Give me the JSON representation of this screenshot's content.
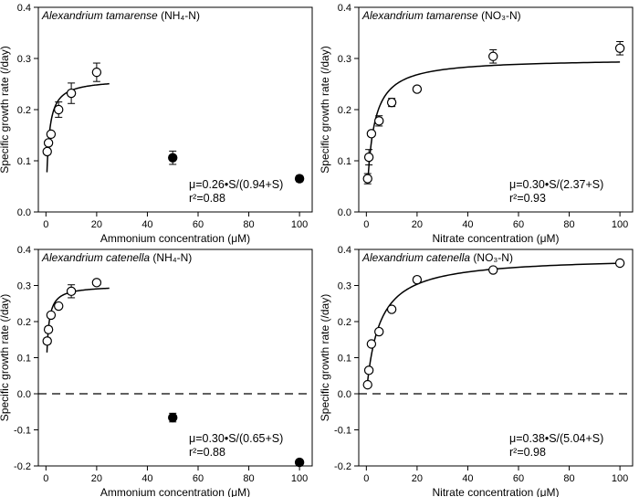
{
  "chart_data": [
    {
      "type": "scatter",
      "title_species": "Alexandrium tamarense",
      "title_nutrient": "(NH₄-N)",
      "xlabel": "Ammonium concentration (μM)",
      "ylabel": "Specific growth rate (/day)",
      "xlim": [
        -3,
        105
      ],
      "ylim": [
        0,
        0.4
      ],
      "xticks": [
        0,
        20,
        40,
        60,
        80,
        100
      ],
      "yticks": [
        0.0,
        0.1,
        0.2,
        0.3,
        0.4
      ],
      "xtick_labels": [
        "0",
        "20",
        "40",
        "60",
        "80",
        "100"
      ],
      "ytick_labels": [
        "0.0",
        "0.1",
        "0.2",
        "0.3",
        "0.4"
      ],
      "equation": "μ=0.26•S/(0.94+S)",
      "r_squared": "r²=0.88",
      "fit": {
        "model": "monod",
        "mu_max": 0.26,
        "ks": 0.94,
        "x_start": 0.4,
        "x_end": 25
      },
      "zero_line": false,
      "series": [
        {
          "marker": "open-circle",
          "x": [
            0.5,
            1,
            2,
            5,
            10,
            20
          ],
          "y": [
            0.118,
            0.135,
            0.152,
            0.2,
            0.232,
            0.273
          ],
          "err": [
            0.005,
            0.005,
            0.005,
            0.015,
            0.02,
            0.018
          ]
        },
        {
          "marker": "filled-circle",
          "x": [
            50,
            100
          ],
          "y": [
            0.106,
            0.065
          ],
          "err": [
            0.013,
            0.006
          ]
        }
      ]
    },
    {
      "type": "scatter",
      "title_species": "Alexandrium tamarense",
      "title_nutrient": "(NO₃-N)",
      "xlabel": "Nitrate concentration (μM)",
      "ylabel": "Specific growth rate (/day)",
      "xlim": [
        -3,
        105
      ],
      "ylim": [
        0,
        0.4
      ],
      "xticks": [
        0,
        20,
        40,
        60,
        80,
        100
      ],
      "yticks": [
        0.0,
        0.1,
        0.2,
        0.3,
        0.4
      ],
      "xtick_labels": [
        "0",
        "20",
        "40",
        "60",
        "80",
        "100"
      ],
      "ytick_labels": [
        "0.0",
        "0.1",
        "0.2",
        "0.3",
        "0.4"
      ],
      "equation": "μ=0.30•S/(2.37+S)",
      "r_squared": "r²=0.93",
      "fit": {
        "model": "monod",
        "mu_max": 0.3,
        "ks": 2.37,
        "x_start": 0.6,
        "x_end": 100
      },
      "zero_line": false,
      "series": [
        {
          "marker": "open-circle",
          "x": [
            0.5,
            1,
            2,
            5,
            10,
            20,
            50,
            100
          ],
          "y": [
            0.065,
            0.107,
            0.153,
            0.178,
            0.214,
            0.24,
            0.304,
            0.32
          ],
          "err": [
            0.01,
            0.015,
            0.005,
            0.01,
            0.008,
            0.005,
            0.013,
            0.013
          ]
        }
      ]
    },
    {
      "type": "scatter",
      "title_species": "Alexandrium catenella",
      "title_nutrient": "(NH₄-N)",
      "xlabel": "Ammonium concentration (μM)",
      "ylabel": "Specific growth rate (/day)",
      "xlim": [
        -3,
        105
      ],
      "ylim": [
        -0.2,
        0.4
      ],
      "xticks": [
        0,
        20,
        40,
        60,
        80,
        100
      ],
      "yticks": [
        -0.2,
        -0.1,
        0.0,
        0.1,
        0.2,
        0.3,
        0.4
      ],
      "xtick_labels": [
        "0",
        "20",
        "40",
        "60",
        "80",
        "100"
      ],
      "ytick_labels": [
        "-0.2",
        "-0.1",
        "0.0",
        "0.1",
        "0.2",
        "0.3",
        "0.4"
      ],
      "equation": "μ=0.30•S/(0.65+S)",
      "r_squared": "r²=0.88",
      "fit": {
        "model": "monod",
        "mu_max": 0.3,
        "ks": 0.65,
        "x_start": 0.4,
        "x_end": 25
      },
      "zero_line": true,
      "series": [
        {
          "marker": "open-circle",
          "x": [
            0.5,
            1,
            2,
            5,
            10,
            20
          ],
          "y": [
            0.146,
            0.178,
            0.218,
            0.243,
            0.284,
            0.308
          ],
          "err": [
            0.008,
            0.008,
            0.005,
            0.005,
            0.018,
            0.005
          ]
        },
        {
          "marker": "filled-circle",
          "x": [
            50,
            100
          ],
          "y": [
            -0.066,
            -0.19
          ],
          "err": [
            0.012,
            0.004
          ]
        }
      ]
    },
    {
      "type": "scatter",
      "title_species": "Alexandrium catenella",
      "title_nutrient": "(NO₃-N)",
      "xlabel": "Nitrate concentration (μM)",
      "ylabel": "Specific growth rate (/day)",
      "xlim": [
        -3,
        105
      ],
      "ylim": [
        -0.2,
        0.4
      ],
      "xticks": [
        0,
        20,
        40,
        60,
        80,
        100
      ],
      "yticks": [
        -0.2,
        -0.1,
        0.0,
        0.1,
        0.2,
        0.3,
        0.4
      ],
      "xtick_labels": [
        "0",
        "20",
        "40",
        "60",
        "80",
        "100"
      ],
      "ytick_labels": [
        "-0.2",
        "-0.1",
        "0.0",
        "0.1",
        "0.2",
        "0.3",
        "0.4"
      ],
      "equation": "μ=0.38•S/(5.04+S)",
      "r_squared": "r²=0.98",
      "fit": {
        "model": "monod",
        "mu_max": 0.38,
        "ks": 5.04,
        "x_start": 0.2,
        "x_end": 100
      },
      "zero_line": true,
      "series": [
        {
          "marker": "open-circle",
          "x": [
            0.5,
            1,
            2,
            5,
            10,
            20,
            50,
            100
          ],
          "y": [
            0.025,
            0.065,
            0.138,
            0.172,
            0.234,
            0.316,
            0.343,
            0.362
          ],
          "err": [
            0.005,
            0.005,
            0.005,
            0.005,
            0.005,
            0.008,
            0.005,
            0.005
          ]
        }
      ]
    }
  ]
}
